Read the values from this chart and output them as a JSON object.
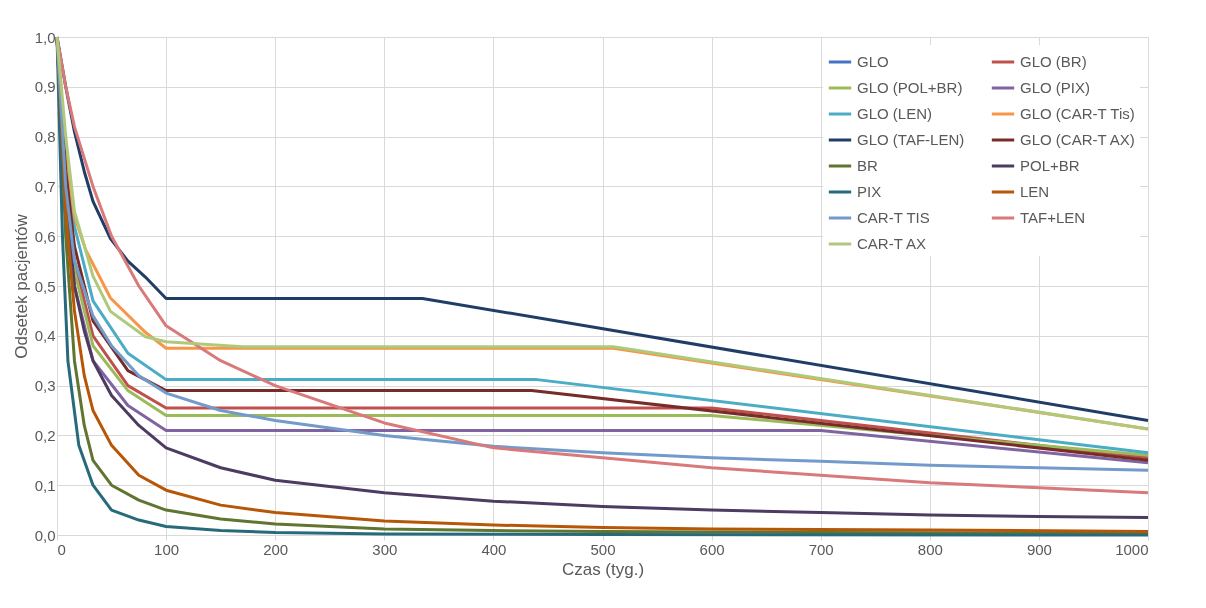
{
  "chart_data": {
    "type": "line",
    "xlabel": "Czas (tyg.)",
    "ylabel": "Odsetek pacjentów",
    "xlim": [
      0,
      1000
    ],
    "ylim": [
      0,
      1
    ],
    "xticks": [
      0,
      100,
      200,
      300,
      400,
      500,
      600,
      700,
      800,
      900,
      1000
    ],
    "yticks": [
      {
        "value": 0,
        "label": "0,0"
      },
      {
        "value": 0.1,
        "label": "0,1"
      },
      {
        "value": 0.2,
        "label": "0,2"
      },
      {
        "value": 0.3,
        "label": "0,3"
      },
      {
        "value": 0.4,
        "label": "0,4"
      },
      {
        "value": 0.5,
        "label": "0,5"
      },
      {
        "value": 0.6,
        "label": "0,6"
      },
      {
        "value": 0.7,
        "label": "0,7"
      },
      {
        "value": 0.8,
        "label": "0,8"
      },
      {
        "value": 0.9,
        "label": "0,9"
      },
      {
        "value": 1,
        "label": "1,0"
      }
    ],
    "grid": true,
    "legend": "top right",
    "marker": "none",
    "line_style": "solid",
    "series": [
      {
        "name": "GLO",
        "color": "#4472c4"
      },
      {
        "name": "GLO (BR)",
        "color": "#c0504d",
        "x": [
          0,
          8,
          16,
          33,
          65,
          100,
          600,
          1000
        ],
        "values": [
          1,
          0.7,
          0.55,
          0.4,
          0.3,
          0.255,
          0.255,
          0.155
        ]
      },
      {
        "name": "GLO (POL+BR)",
        "color": "#9bbb59",
        "x": [
          0,
          8,
          16,
          33,
          65,
          100,
          600,
          1000
        ],
        "values": [
          1,
          0.68,
          0.53,
          0.38,
          0.29,
          0.24,
          0.24,
          0.16
        ]
      },
      {
        "name": "GLO (PIX)",
        "color": "#8064a2",
        "x": [
          0,
          8,
          16,
          33,
          65,
          100,
          700,
          1000
        ],
        "values": [
          1,
          0.65,
          0.5,
          0.35,
          0.26,
          0.21,
          0.21,
          0.145
        ]
      },
      {
        "name": "GLO (LEN)",
        "color": "#4bacc6",
        "x": [
          0,
          8,
          16,
          33,
          65,
          100,
          440,
          1000
        ],
        "values": [
          1,
          0.75,
          0.62,
          0.47,
          0.365,
          0.312,
          0.312,
          0.165
        ]
      },
      {
        "name": "GLO (CAR-T Tis)",
        "color": "#f79646",
        "x": [
          0,
          8,
          16,
          26,
          49,
          81,
          100,
          510,
          1000
        ],
        "values": [
          1,
          0.77,
          0.64,
          0.574,
          0.476,
          0.407,
          0.375,
          0.375,
          0.213
        ]
      },
      {
        "name": "GLO (TAF-LEN)",
        "color": "#1f3d66",
        "x": [
          0,
          8,
          16,
          25,
          33,
          49,
          65,
          81,
          100,
          335,
          1000
        ],
        "values": [
          1,
          0.9,
          0.81,
          0.73,
          0.67,
          0.595,
          0.55,
          0.518,
          0.475,
          0.475,
          0.23
        ]
      },
      {
        "name": "GLO (CAR-T AX)",
        "color": "#772c2a",
        "x": [
          0,
          8,
          16,
          33,
          65,
          100,
          435,
          1000
        ],
        "values": [
          1,
          0.73,
          0.58,
          0.43,
          0.33,
          0.29,
          0.29,
          0.15
        ]
      },
      {
        "name": "BR",
        "color": "#5f7530",
        "x": [
          0,
          8,
          16,
          25,
          33,
          50,
          75,
          100,
          150,
          200,
          300,
          400,
          500,
          700,
          1000
        ],
        "values": [
          1,
          0.6,
          0.35,
          0.22,
          0.15,
          0.1,
          0.07,
          0.05,
          0.032,
          0.022,
          0.012,
          0.009,
          0.007,
          0.005,
          0.003
        ]
      },
      {
        "name": "POL+BR",
        "color": "#4d3b62",
        "x": [
          0,
          8,
          16,
          25,
          33,
          50,
          75,
          100,
          150,
          200,
          300,
          400,
          500,
          600,
          700,
          800,
          900,
          1000
        ],
        "values": [
          1,
          0.68,
          0.5,
          0.41,
          0.35,
          0.28,
          0.22,
          0.175,
          0.135,
          0.11,
          0.085,
          0.068,
          0.057,
          0.05,
          0.045,
          0.04,
          0.037,
          0.035
        ]
      },
      {
        "name": "PIX",
        "color": "#276a7c",
        "x": [
          0,
          5,
          10,
          20,
          33,
          50,
          75,
          100,
          150,
          200,
          300,
          500,
          1000
        ],
        "values": [
          1,
          0.6,
          0.35,
          0.18,
          0.1,
          0.05,
          0.03,
          0.017,
          0.009,
          0.005,
          0.002,
          0.001,
          0
        ]
      },
      {
        "name": "LEN",
        "color": "#b65708",
        "x": [
          0,
          8,
          16,
          25,
          33,
          50,
          75,
          100,
          150,
          200,
          300,
          400,
          500,
          600,
          800,
          1000
        ],
        "values": [
          1,
          0.65,
          0.45,
          0.32,
          0.25,
          0.18,
          0.12,
          0.09,
          0.06,
          0.045,
          0.028,
          0.02,
          0.015,
          0.012,
          0.01,
          0.007
        ]
      },
      {
        "name": "CAR-T TIS",
        "color": "#729aca",
        "x": [
          0,
          8,
          16,
          33,
          50,
          75,
          100,
          150,
          200,
          300,
          400,
          500,
          600,
          700,
          800,
          900,
          1000
        ],
        "values": [
          1,
          0.7,
          0.55,
          0.44,
          0.38,
          0.32,
          0.285,
          0.25,
          0.23,
          0.2,
          0.178,
          0.165,
          0.155,
          0.148,
          0.14,
          0.135,
          0.13
        ]
      },
      {
        "name": "TAF+LEN",
        "color": "#d9797a",
        "x": [
          0,
          8,
          16,
          33,
          50,
          75,
          100,
          150,
          200,
          300,
          400,
          500,
          600,
          700,
          800,
          900,
          1000
        ],
        "values": [
          1,
          0.9,
          0.82,
          0.7,
          0.6,
          0.5,
          0.42,
          0.35,
          0.3,
          0.225,
          0.175,
          0.155,
          0.135,
          0.12,
          0.105,
          0.095,
          0.085
        ]
      },
      {
        "name": "CAR-T AX",
        "color": "#afc97a",
        "x": [
          0,
          8,
          16,
          33,
          49,
          81,
          100,
          170,
          510,
          1000
        ],
        "values": [
          1,
          0.8,
          0.65,
          0.52,
          0.449,
          0.398,
          0.388,
          0.378,
          0.378,
          0.213
        ]
      }
    ]
  }
}
